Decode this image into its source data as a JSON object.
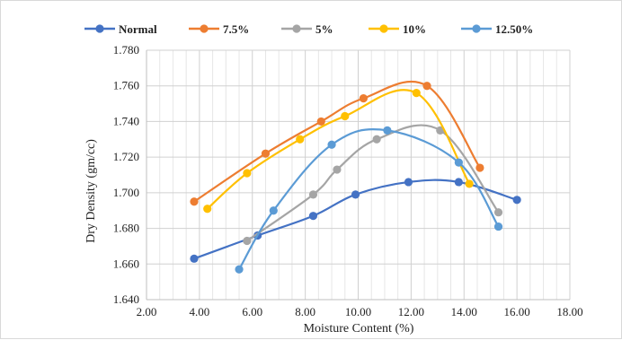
{
  "chart_data": {
    "type": "scatter",
    "title": "",
    "xlabel": "Moisture Content (%)",
    "ylabel": "Dry Density (gm/cc)",
    "xlim": [
      2.0,
      18.0
    ],
    "ylim": [
      1.64,
      1.78
    ],
    "x_ticks": [
      "2.00",
      "4.00",
      "6.00",
      "8.00",
      "10.00",
      "12.00",
      "14.00",
      "16.00",
      "18.00"
    ],
    "y_ticks": [
      "1.640",
      "1.660",
      "1.680",
      "1.700",
      "1.720",
      "1.740",
      "1.760",
      "1.780"
    ],
    "grid": true,
    "legend_position": "top",
    "line_style": "smooth-with-markers",
    "series": [
      {
        "name": "Normal",
        "color": "#4472C4",
        "x": [
          3.8,
          6.2,
          8.3,
          9.9,
          11.9,
          13.8,
          16.0
        ],
        "y": [
          1.663,
          1.676,
          1.687,
          1.699,
          1.706,
          1.706,
          1.696
        ]
      },
      {
        "name": "7.5%",
        "color": "#ED7D31",
        "x": [
          3.8,
          6.5,
          8.6,
          10.2,
          12.6,
          14.6
        ],
        "y": [
          1.695,
          1.722,
          1.74,
          1.753,
          1.76,
          1.714
        ]
      },
      {
        "name": "5%",
        "color": "#A5A5A5",
        "x": [
          5.8,
          8.3,
          9.2,
          10.7,
          13.1,
          15.3
        ],
        "y": [
          1.673,
          1.699,
          1.713,
          1.73,
          1.735,
          1.689
        ]
      },
      {
        "name": "10%",
        "color": "#FFC000",
        "x": [
          4.3,
          5.8,
          7.8,
          9.5,
          12.2,
          14.2
        ],
        "y": [
          1.691,
          1.711,
          1.73,
          1.743,
          1.756,
          1.705
        ]
      },
      {
        "name": "12.50%",
        "color": "#5B9BD5",
        "x": [
          5.5,
          6.8,
          9.0,
          11.1,
          13.8,
          15.3
        ],
        "y": [
          1.657,
          1.69,
          1.727,
          1.735,
          1.717,
          1.681
        ]
      }
    ]
  }
}
